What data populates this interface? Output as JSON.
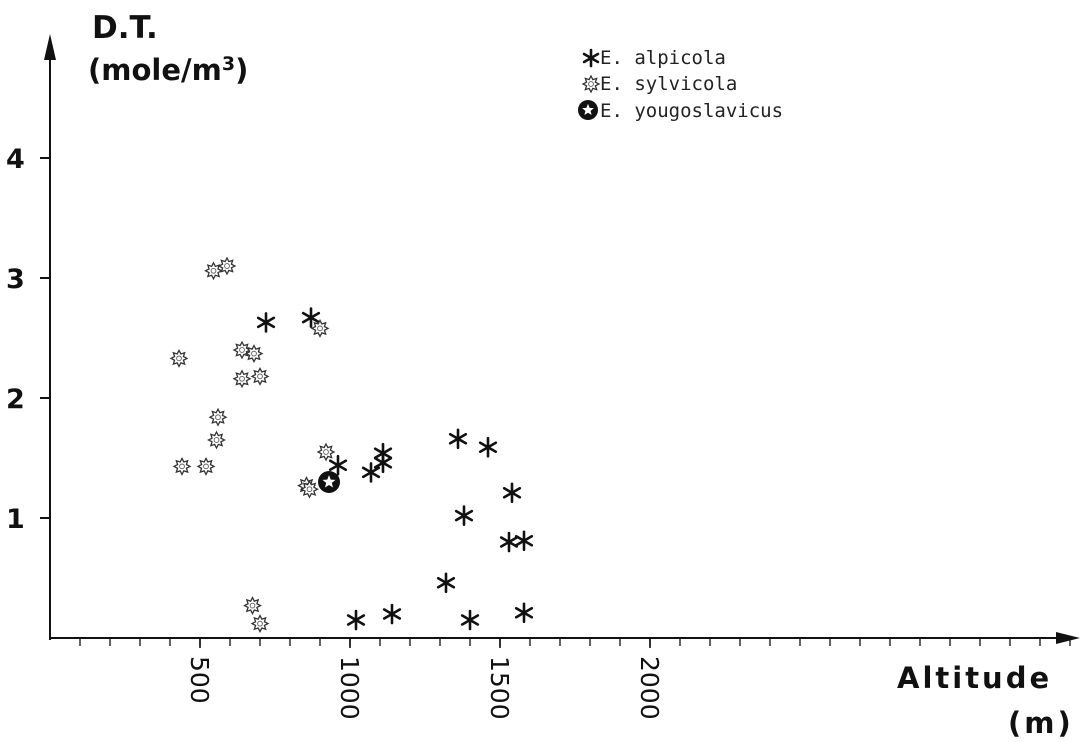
{
  "chart_data": {
    "type": "scatter",
    "ylabel": "D.T.",
    "yunit": "(mole/m",
    "yunit_sup": "3",
    "yunit_close": ")",
    "xlabel": "Altitude",
    "xunit": "(m)",
    "xticks": [
      500,
      1000,
      1500,
      2000
    ],
    "xtick_labels": [
      "500",
      "1000",
      "1500",
      "2000"
    ],
    "yticks": [
      1,
      2,
      3,
      4
    ],
    "ytick_labels": [
      "1",
      "2",
      "3",
      "4"
    ],
    "xlim": [
      0,
      3450
    ],
    "ylim": [
      0,
      5
    ],
    "grid": false,
    "legend_position": "top-right",
    "series": [
      {
        "name": "E. alpicola",
        "marker": "asterisk",
        "x": [
          720,
          870,
          960,
          1070,
          1110,
          1110,
          1360,
          1460,
          1380,
          1540,
          1530,
          1580,
          1320,
          1020,
          1140,
          1400,
          1580
        ],
        "y": [
          2.63,
          2.67,
          1.44,
          1.38,
          1.46,
          1.54,
          1.66,
          1.59,
          1.02,
          1.21,
          0.8,
          0.81,
          0.46,
          0.15,
          0.2,
          0.15,
          0.21
        ]
      },
      {
        "name": "E. sylvicola",
        "marker": "star-outline",
        "x": [
          545,
          590,
          430,
          640,
          680,
          640,
          700,
          560,
          555,
          440,
          520,
          920,
          900,
          855,
          865,
          675,
          700
        ],
        "y": [
          3.06,
          3.1,
          2.33,
          2.4,
          2.37,
          2.16,
          2.18,
          1.84,
          1.65,
          1.43,
          1.43,
          1.55,
          2.58,
          1.27,
          1.24,
          0.27,
          0.12
        ]
      },
      {
        "name": "E. yougoslavicus",
        "marker": "star-in-circle",
        "x": [
          930
        ],
        "y": [
          1.3
        ]
      }
    ]
  }
}
